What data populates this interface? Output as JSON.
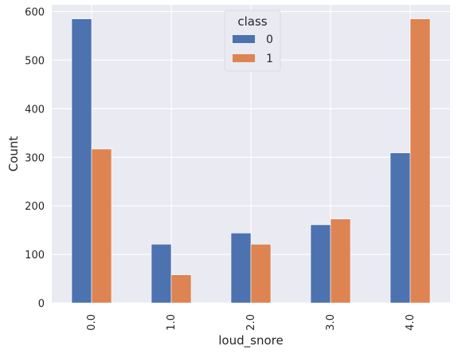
{
  "chart_data": {
    "type": "bar",
    "categories": [
      "0.0",
      "1.0",
      "2.0",
      "3.0",
      "4.0"
    ],
    "series": [
      {
        "name": "0",
        "values": [
          585,
          121,
          144,
          161,
          309
        ],
        "color": "#4c72b0"
      },
      {
        "name": "1",
        "values": [
          317,
          58,
          121,
          173,
          585
        ],
        "color": "#dd8452"
      }
    ],
    "xlabel": "loud_snore",
    "ylabel": "Count",
    "ylim": [
      0,
      614
    ],
    "yticks": [
      0,
      100,
      200,
      300,
      400,
      500,
      600
    ],
    "legend": {
      "title": "class",
      "placement": "top-center"
    },
    "grid": true,
    "background": "#eaeaf2",
    "grid_color": "#ffffff"
  }
}
